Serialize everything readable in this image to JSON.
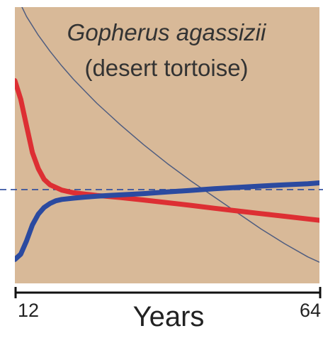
{
  "chart_data": {
    "type": "line",
    "title": "Gopherus agassizii",
    "subtitle": "(desert tortoise)",
    "xlabel": "Years",
    "ylabel": "",
    "x_tick_labels": [
      "12",
      "64"
    ],
    "xlim": [
      12,
      64
    ],
    "ylim": [
      0,
      1
    ],
    "grid": false,
    "legend": "none",
    "background_color": "#d8b998",
    "reference_line": {
      "y": 0.322,
      "style": "dashed",
      "color": "#2b4a9c"
    },
    "series": [
      {
        "color": "#2b4aa0",
        "style": "solid-thick",
        "x": [
          12,
          13,
          14,
          15,
          16,
          17,
          18,
          19,
          20,
          22,
          24,
          26,
          28,
          30,
          34,
          38,
          42,
          46,
          50,
          54,
          58,
          62,
          64
        ],
        "y": [
          0.06,
          0.08,
          0.13,
          0.19,
          0.23,
          0.255,
          0.27,
          0.28,
          0.285,
          0.29,
          0.294,
          0.297,
          0.3,
          0.302,
          0.307,
          0.313,
          0.319,
          0.325,
          0.33,
          0.335,
          0.34,
          0.344,
          0.347
        ]
      },
      {
        "color": "#dd2f33",
        "style": "solid-thick",
        "x": [
          12,
          13,
          14,
          15,
          16,
          17,
          18,
          19,
          20,
          22,
          24,
          26,
          28,
          30,
          34,
          38,
          42,
          46,
          50,
          54,
          58,
          62,
          64
        ],
        "y": [
          0.73,
          0.66,
          0.56,
          0.46,
          0.4,
          0.36,
          0.34,
          0.33,
          0.32,
          0.31,
          0.305,
          0.3,
          0.296,
          0.292,
          0.283,
          0.273,
          0.263,
          0.252,
          0.242,
          0.232,
          0.222,
          0.212,
          0.207
        ]
      },
      {
        "color": "#4f5d80",
        "style": "solid-thin",
        "x": [
          12,
          14,
          16,
          18,
          20,
          22,
          24,
          26,
          28,
          30,
          34,
          38,
          42,
          46,
          50,
          54,
          58,
          62,
          64
        ],
        "y": [
          1.06,
          0.97,
          0.9,
          0.84,
          0.785,
          0.735,
          0.69,
          0.645,
          0.605,
          0.565,
          0.49,
          0.42,
          0.355,
          0.295,
          0.235,
          0.175,
          0.12,
          0.07,
          0.05
        ]
      }
    ]
  }
}
